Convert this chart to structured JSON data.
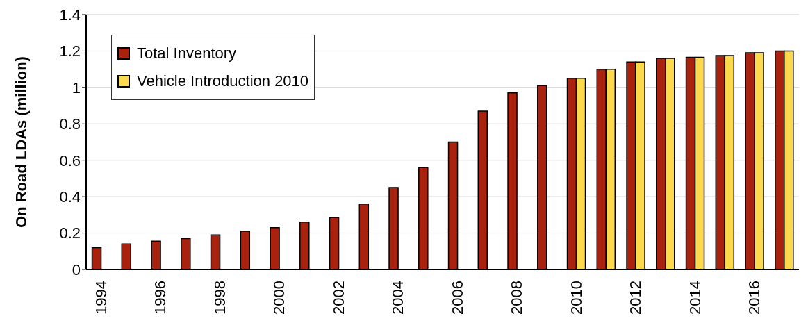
{
  "chart_data": {
    "type": "bar",
    "ylabel": "On Road LDAs (million)",
    "categories": [
      "1994",
      null,
      "1996",
      null,
      "1998",
      null,
      "2000",
      null,
      "2002",
      null,
      "2004",
      null,
      "2006",
      null,
      "2008",
      null,
      "2010",
      null,
      "2012",
      null,
      "2014",
      null,
      "2016",
      null
    ],
    "series": [
      {
        "name": "Total Inventory",
        "color": "#a8220e",
        "values": [
          0.12,
          0.14,
          0.155,
          0.17,
          0.19,
          0.21,
          0.23,
          0.26,
          0.285,
          0.36,
          0.45,
          0.56,
          0.7,
          0.87,
          0.97,
          1.01,
          1.05,
          1.1,
          1.14,
          1.16,
          1.165,
          1.175,
          1.19,
          1.2
        ]
      },
      {
        "name": "Vehicle Introduction 2010",
        "color": "#fdd94c",
        "values": [
          null,
          null,
          null,
          null,
          null,
          null,
          null,
          null,
          null,
          null,
          null,
          null,
          null,
          null,
          null,
          null,
          1.05,
          1.1,
          1.14,
          1.16,
          1.165,
          1.175,
          1.19,
          1.2
        ]
      }
    ],
    "ylim": [
      0,
      1.4
    ],
    "yticks": [
      0,
      0.2,
      0.4,
      0.6,
      0.8,
      1,
      1.2,
      1.4
    ],
    "grid": "y",
    "legend": "top left"
  }
}
